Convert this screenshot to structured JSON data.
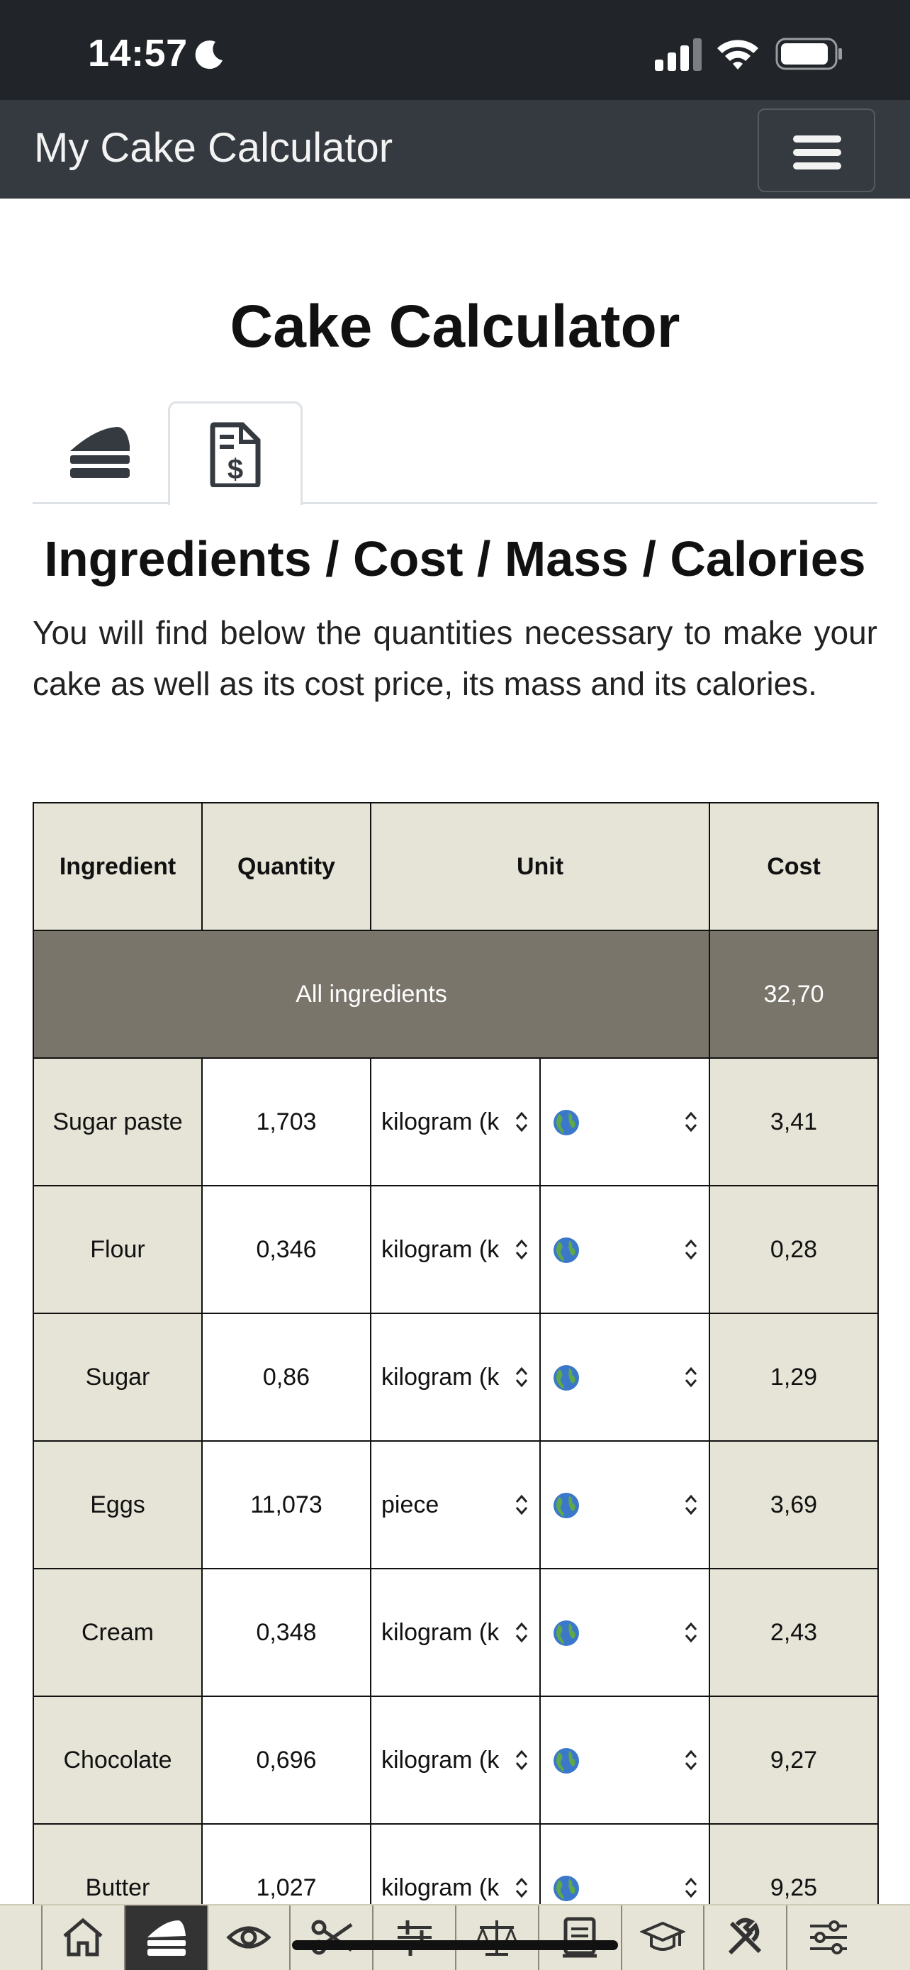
{
  "status": {
    "time": "14:57"
  },
  "navbar": {
    "brand": "My Cake Calculator"
  },
  "page": {
    "title": "Cake Calculator"
  },
  "tabs": [
    {
      "icon": "cake-slice-icon",
      "active": false
    },
    {
      "icon": "invoice-dollar-icon",
      "active": true
    }
  ],
  "section": {
    "title": "Ingredients / Cost / Mass / Calories",
    "intro": "You will find below the quantities necessary to make your cake as well as its cost price, its mass and its calories."
  },
  "table": {
    "headers": {
      "ingredient": "Ingredient",
      "quantity": "Quantity",
      "unit": "Unit",
      "cost": "Cost"
    },
    "all": {
      "label": "All ingredients",
      "cost": "32,70"
    },
    "rows": [
      {
        "name": "Sugar paste",
        "qty": "1,703",
        "unit": "kilogram (k",
        "cost": "3,41"
      },
      {
        "name": "Flour",
        "qty": "0,346",
        "unit": "kilogram (k",
        "cost": "0,28"
      },
      {
        "name": "Sugar",
        "qty": "0,86",
        "unit": "kilogram (k",
        "cost": "1,29"
      },
      {
        "name": "Eggs",
        "qty": "11,073",
        "unit": "piece",
        "cost": "3,69"
      },
      {
        "name": "Cream",
        "qty": "0,348",
        "unit": "kilogram (k",
        "cost": "2,43"
      },
      {
        "name": "Chocolate",
        "qty": "0,696",
        "unit": "kilogram (k",
        "cost": "9,27"
      },
      {
        "name": "Butter",
        "qty": "1,027",
        "unit": "kilogram (k",
        "cost": "9,25"
      }
    ]
  },
  "bottom_nav": [
    {
      "icon": "home-icon"
    },
    {
      "icon": "cake-slice-icon",
      "active": true
    },
    {
      "icon": "eye-icon"
    },
    {
      "icon": "scissors-icon"
    },
    {
      "icon": "sliders-plus-icon"
    },
    {
      "icon": "balance-scale-icon"
    },
    {
      "icon": "document-icon"
    },
    {
      "icon": "graduation-cap-icon"
    },
    {
      "icon": "tools-icon"
    },
    {
      "icon": "settings-sliders-icon"
    }
  ],
  "colors": {
    "navbar": "#343a40",
    "status_bar": "#212529",
    "header_cell": "#e6e4d6",
    "all_row": "#7a756b"
  }
}
